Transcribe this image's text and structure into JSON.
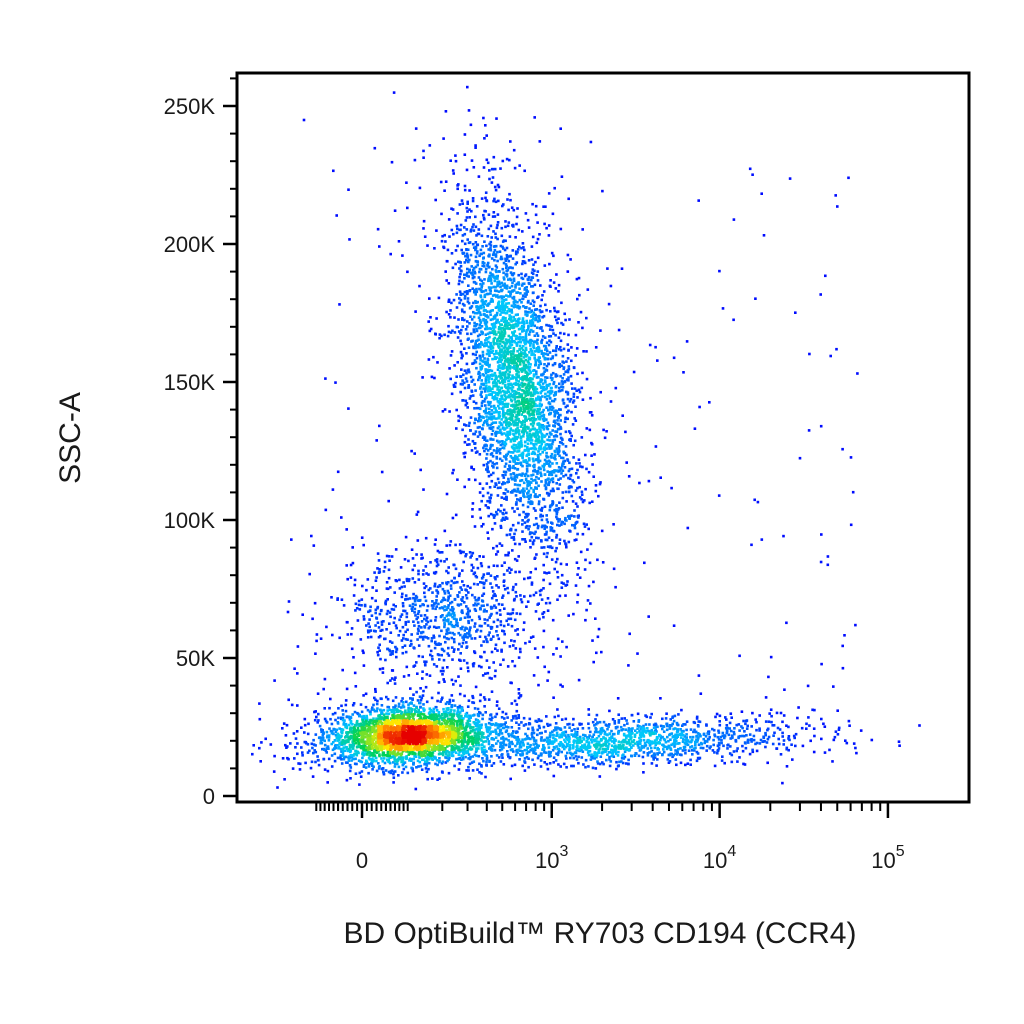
{
  "chart_data": {
    "type": "scatter",
    "title": "",
    "xlabel": "BD OptiBuild™ RY703 CD194 (CCR4)",
    "ylabel": "SSC-A",
    "x_scale": "biexponential",
    "y_scale": "linear",
    "xlim": [
      -200,
      100000
    ],
    "ylim": [
      0,
      262144
    ],
    "x_ticks": [
      {
        "value": 0,
        "base": "0",
        "exp": ""
      },
      {
        "value": 1000,
        "base": "10",
        "exp": "3"
      },
      {
        "value": 10000,
        "base": "10",
        "exp": "4"
      },
      {
        "value": 100000,
        "base": "10",
        "exp": "5"
      }
    ],
    "y_ticks": [
      {
        "value": 0,
        "label": "0"
      },
      {
        "value": 50000,
        "label": "50K"
      },
      {
        "value": 100000,
        "label": "100K"
      },
      {
        "value": 150000,
        "label": "150K"
      },
      {
        "value": 200000,
        "label": "200K"
      },
      {
        "value": 250000,
        "label": "250K"
      }
    ],
    "color_scale": "density (blue → cyan → green → yellow → red)",
    "grid": false,
    "legend": "none",
    "populations": [
      {
        "center_x": 100,
        "center_y": 22000,
        "events": 2900
      },
      {
        "center_x": 600,
        "center_y": 150000,
        "events": 3600
      },
      {
        "center_x": 200,
        "center_y": 65000,
        "events": 900
      },
      {
        "center_x": 2500,
        "center_y": 20000,
        "events": 1400
      }
    ]
  }
}
